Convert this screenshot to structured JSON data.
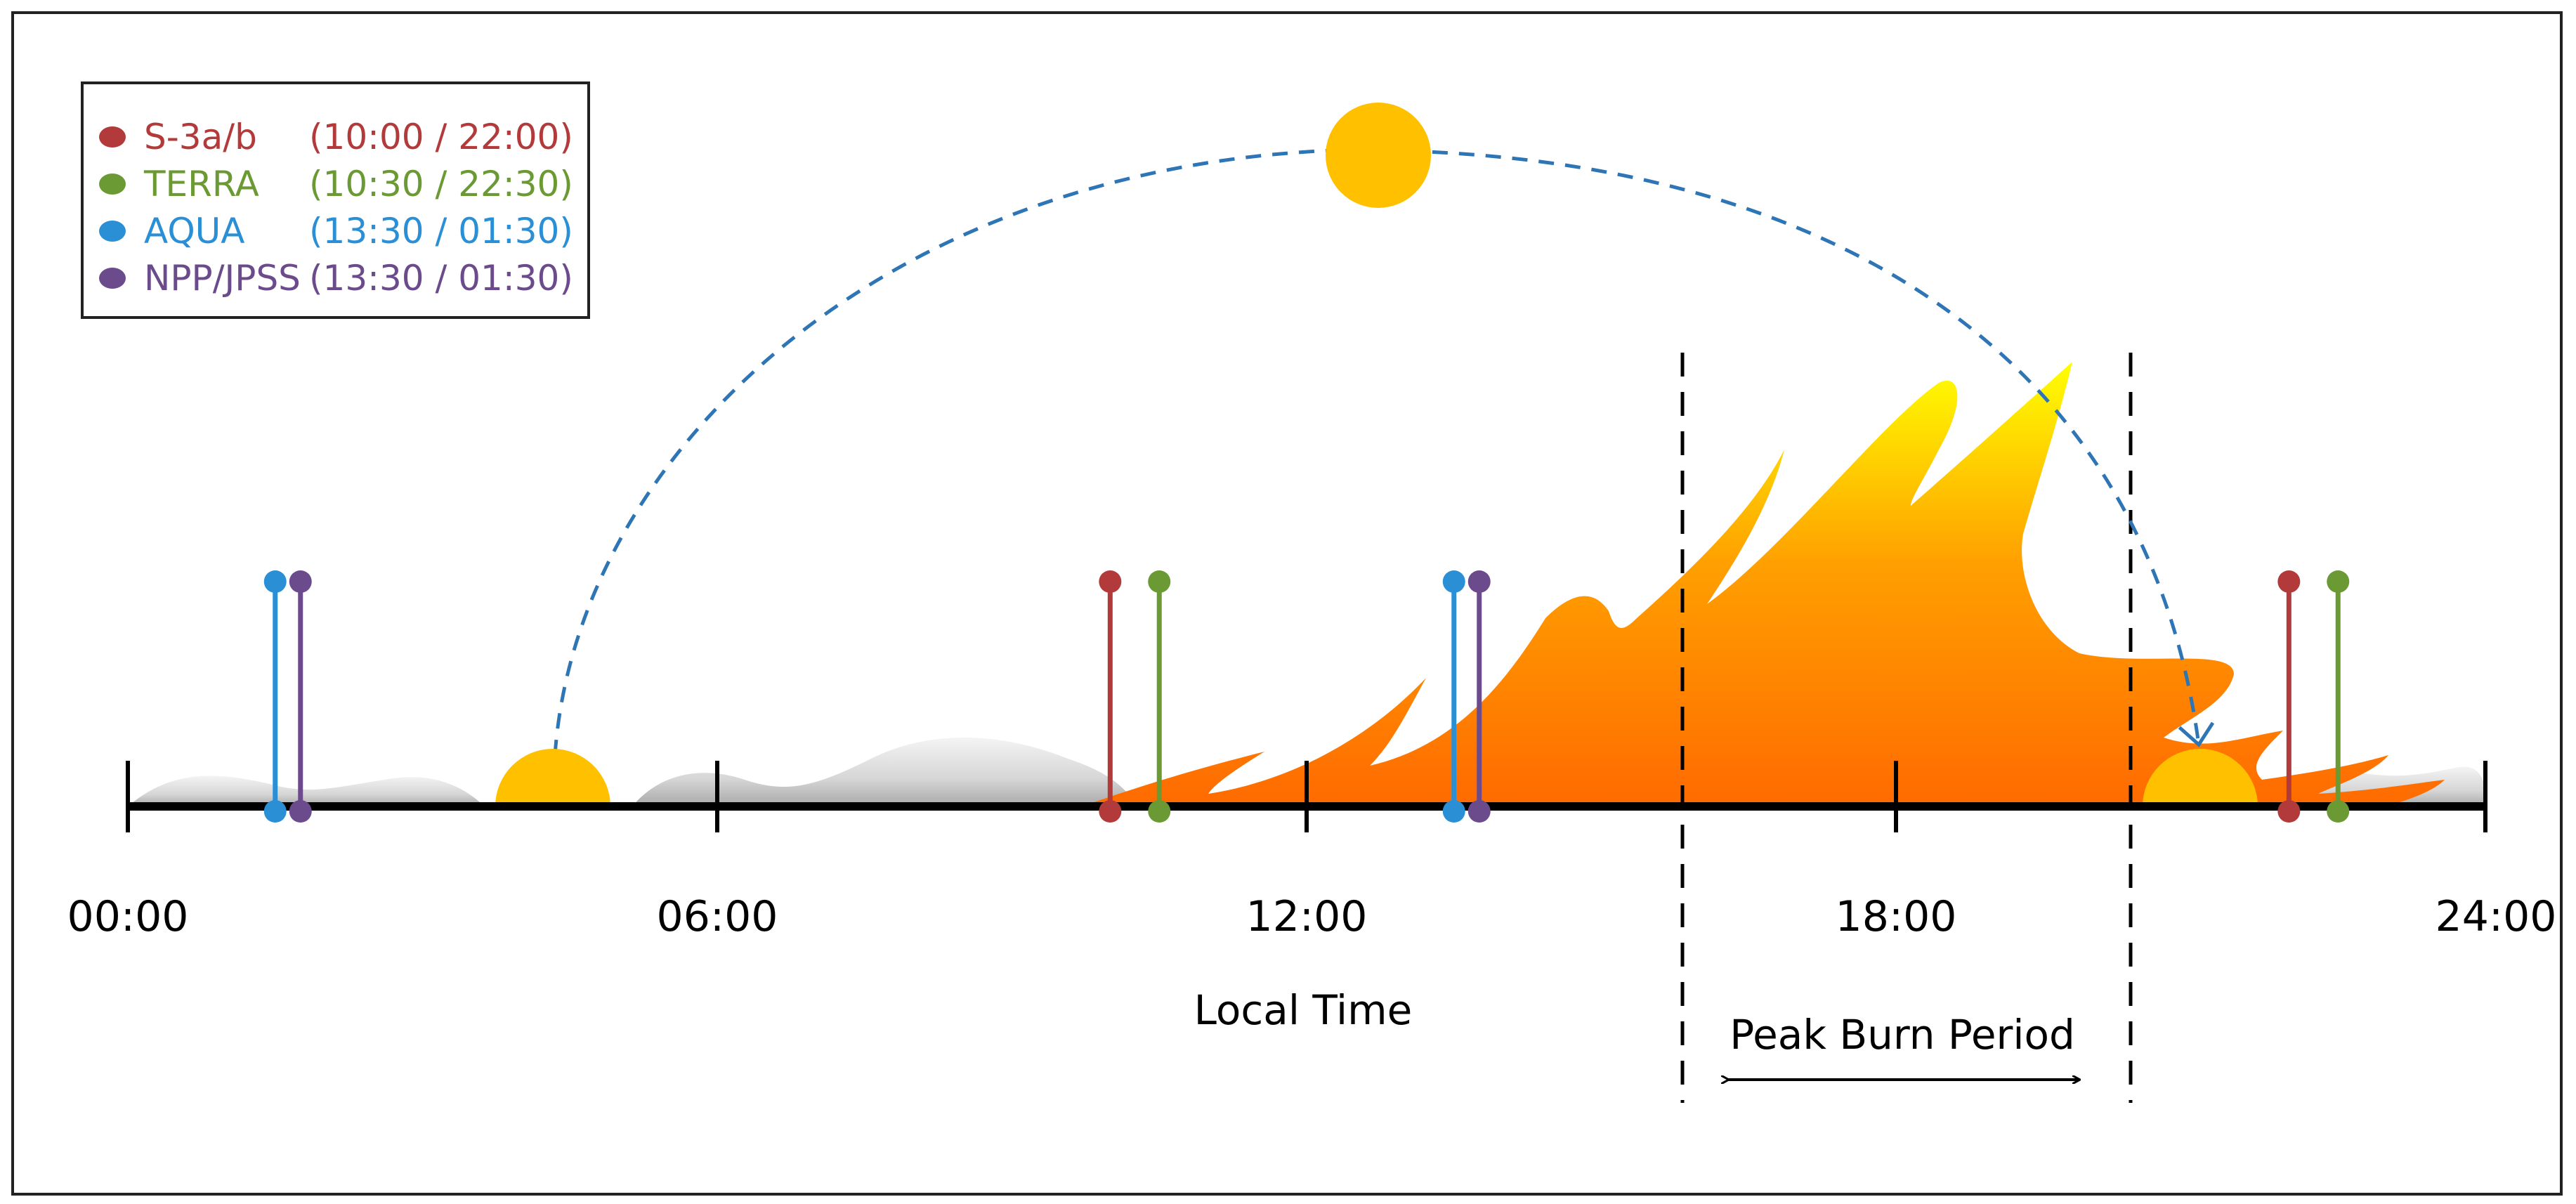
{
  "legend": {
    "items": [
      {
        "name": "S-3a/b",
        "times": "(10:00 / 22:00)",
        "color": "#b33a3a"
      },
      {
        "name": "TERRA",
        "times": "(10:30 / 22:30)",
        "color": "#6b9a34"
      },
      {
        "name": "AQUA",
        "times": "(13:30 / 01:30)",
        "color": "#2b8fd6"
      },
      {
        "name": "NPP/JPSS",
        "times": "(13:30 / 01:30)",
        "color": "#6b4b8c"
      }
    ]
  },
  "axis": {
    "ticks": [
      {
        "hour": 0,
        "label": "00:00"
      },
      {
        "hour": 6,
        "label": "06:00"
      },
      {
        "hour": 12,
        "label": "12:00"
      },
      {
        "hour": 18,
        "label": "18:00"
      },
      {
        "hour": 24,
        "label": "24:00"
      }
    ],
    "title": "Local Time"
  },
  "peak_burn": {
    "label": "Peak Burn Period"
  },
  "overpasses": [
    {
      "satellite": "AQUA",
      "hour": 1.5
    },
    {
      "satellite": "NPP/JPSS",
      "hour": 1.5
    },
    {
      "satellite": "S-3a/b",
      "hour": 10.0
    },
    {
      "satellite": "TERRA",
      "hour": 10.5
    },
    {
      "satellite": "AQUA",
      "hour": 13.5
    },
    {
      "satellite": "NPP/JPSS",
      "hour": 13.5
    },
    {
      "satellite": "S-3a/b",
      "hour": 22.0
    },
    {
      "satellite": "TERRA",
      "hour": 22.5
    }
  ],
  "colors": {
    "sun": "#ffc000",
    "fire_top": "#ffff00",
    "fire_mid": "#ff9f00",
    "fire_bottom": "#ff6a00",
    "arc": "#2e75b6",
    "axis": "#000000"
  }
}
